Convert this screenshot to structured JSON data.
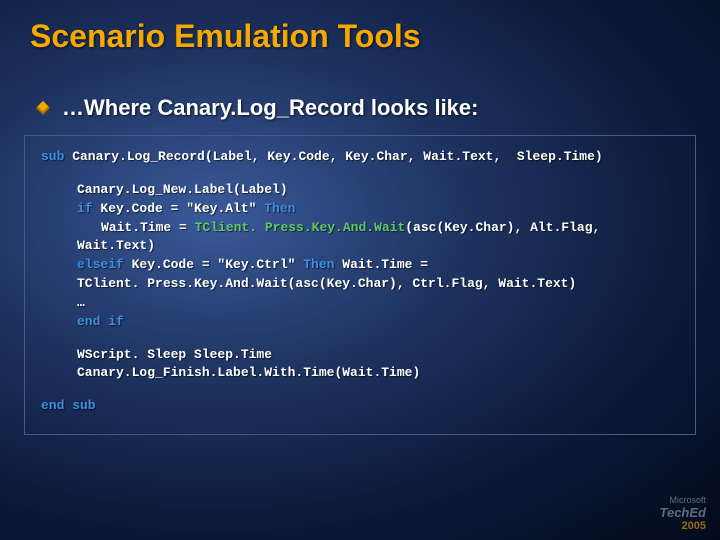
{
  "slide": {
    "title": "Scenario Emulation Tools",
    "bullet": "…Where Canary.Log_Record looks like:",
    "title_color": "#f5a800",
    "text_color": "#ffffff",
    "keyword_color": "#3f8de0",
    "function_color": "#5fc86a",
    "background_colors": [
      "#3a5a9a",
      "#1e3360",
      "#0a1838",
      "#030a1a"
    ],
    "code": {
      "l1_kw": "sub",
      "l1_rest": " Canary.Log_Record(Label, Key.Code, Key.Char, Wait.Text,  Sleep.Time)",
      "l2": "Canary.Log_New.Label(Label)",
      "l3_a": "if",
      "l3_b": " Key.Code = \"Key.Alt\" ",
      "l3_c": "Then",
      "l4_a": "Wait.Time = ",
      "l4_b": "TClient. Press.Key.And.Wait",
      "l4_c": "(asc(Key.Char), Alt.Flag,",
      "l4_wrap": "Wait.Text)",
      "l5_a": "elseif",
      "l5_b": " Key.Code = \"Key.Ctrl\" ",
      "l5_c": "Then",
      "l5_d": " Wait.Time =",
      "l5_wrap": "TClient. Press.Key.And.Wait(asc(Key.Char), Ctrl.Flag, Wait.Text)",
      "l6": "…",
      "l7": "end if",
      "l8": "WScript. Sleep Sleep.Time",
      "l9": "Canary.Log_Finish.Label.With.Time(Wait.Time)",
      "l10": "end sub"
    }
  },
  "footer": {
    "brand_top": "Microsoft",
    "brand_main": "TechEd",
    "year": "2005"
  }
}
